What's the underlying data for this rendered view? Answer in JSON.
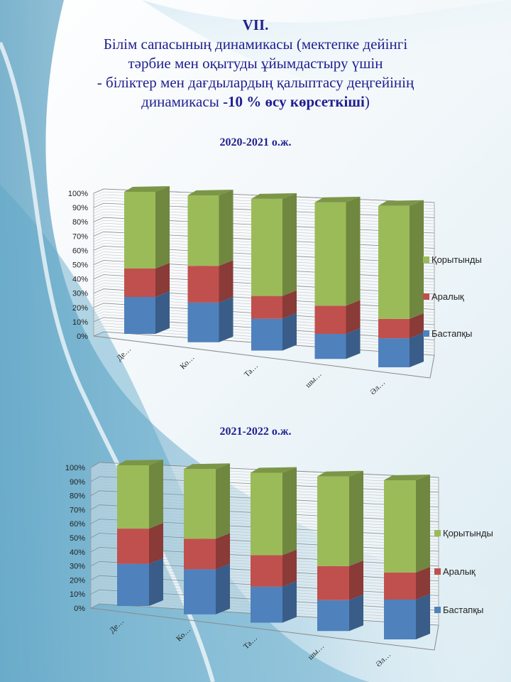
{
  "title": {
    "line1": "VII.",
    "line2": "Білім сапасының динамикасы (мектепке дейінгі",
    "line3": "тәрбие мен оқытуды ұйымдастыру үшін",
    "line4": "- біліктер мен дағдылардың қалыптасу деңгейінің",
    "line5_pre": "динамикасы ",
    "line5_bold": "-10 % өсу көрсеткіші",
    "line5_post": ")"
  },
  "colors": {
    "Бастапқы": "#4f81bd",
    "Аралық": "#c0504d",
    "Қорытынды": "#9bbb59"
  },
  "chart_data": [
    {
      "type": "bar",
      "stacked": "percent",
      "title": "2020-2021 о.ж.",
      "categories": [
        "Де…",
        "Ко…",
        "Та…",
        "шы…",
        "Әл…"
      ],
      "series": [
        {
          "name": "Бастапқы",
          "values": [
            26,
            27,
            21,
            16,
            18
          ]
        },
        {
          "name": "Аралық",
          "values": [
            20,
            25,
            15,
            18,
            12
          ]
        },
        {
          "name": "Қорытынды",
          "values": [
            54,
            48,
            64,
            66,
            70
          ]
        }
      ],
      "yticks": [
        "0%",
        "10%",
        "20%",
        "30%",
        "40%",
        "50%",
        "60%",
        "70%",
        "80%",
        "90%",
        "100%"
      ],
      "ylim": [
        0,
        100
      ],
      "legend_order": [
        "Қорытынды",
        "Аралық",
        "Бастапқы"
      ],
      "legend_position": "right"
    },
    {
      "type": "bar",
      "stacked": "percent",
      "title": "2021-2022 о.ж.",
      "categories": [
        "Де…",
        "Ко…",
        "Та…",
        "шы…",
        "Әл…"
      ],
      "series": [
        {
          "name": "Бастапқы",
          "values": [
            30,
            31,
            24,
            20,
            25
          ]
        },
        {
          "name": "Аралық",
          "values": [
            25,
            21,
            21,
            22,
            17
          ]
        },
        {
          "name": "Қорытынды",
          "values": [
            45,
            48,
            55,
            58,
            58
          ]
        }
      ],
      "yticks": [
        "0%",
        "10%",
        "20%",
        "30%",
        "40%",
        "50%",
        "60%",
        "70%",
        "80%",
        "90%",
        "100%"
      ],
      "ylim": [
        0,
        100
      ],
      "legend_order": [
        "Қорытынды",
        "Аралық",
        "Бастапқы"
      ],
      "legend_position": "right"
    }
  ]
}
